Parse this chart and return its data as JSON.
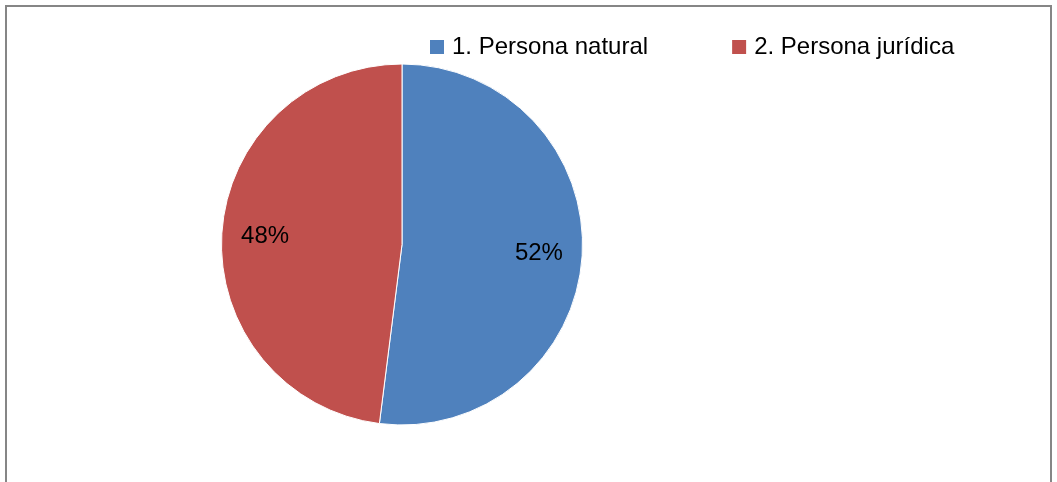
{
  "chart_data": {
    "type": "pie",
    "categories": [
      "1. Persona natural",
      "2. Persona jurídica"
    ],
    "values": [
      52,
      48
    ],
    "colors": [
      "#4f81bd",
      "#c0504d"
    ],
    "value_labels": [
      "52%",
      "48%"
    ],
    "legend": "top"
  }
}
